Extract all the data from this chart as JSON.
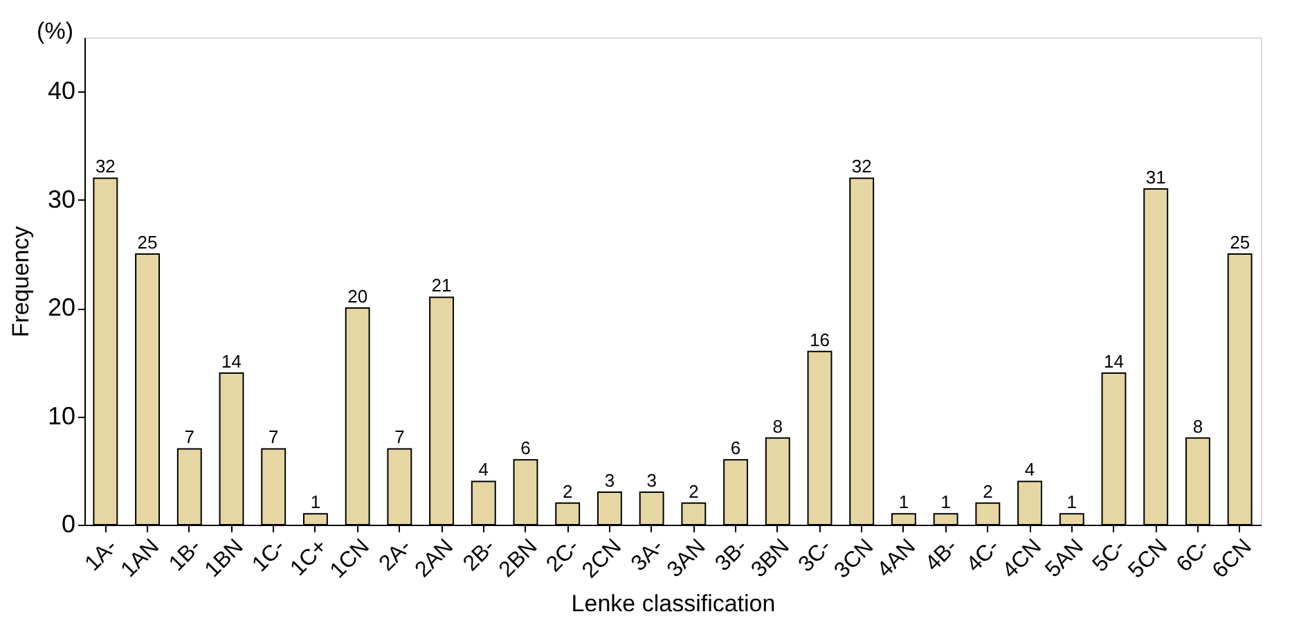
{
  "chart_data": {
    "type": "bar",
    "xlabel": "Lenke classification",
    "ylabel": "Frequency",
    "annotations": [
      "(%)"
    ],
    "categories": [
      "1A-",
      "1AN",
      "1B-",
      "1BN",
      "1C-",
      "1C+",
      "1CN",
      "2A-",
      "2AN",
      "2B-",
      "2BN",
      "2C-",
      "2CN",
      "3A-",
      "3AN",
      "3B-",
      "3BN",
      "3C-",
      "3CN",
      "4AN",
      "4B-",
      "4C-",
      "4CN",
      "5AN",
      "5C-",
      "5CN",
      "6C-",
      "6CN"
    ],
    "values": [
      32,
      25,
      7,
      14,
      7,
      1,
      20,
      7,
      21,
      4,
      6,
      2,
      3,
      3,
      2,
      6,
      8,
      16,
      32,
      1,
      1,
      2,
      4,
      1,
      14,
      31,
      8,
      25
    ],
    "color": "#e6d6a2",
    "ylim": [
      0,
      45
    ],
    "yticks": [
      0,
      10,
      20,
      30,
      40
    ],
    "grid": false,
    "data_labels": true
  }
}
